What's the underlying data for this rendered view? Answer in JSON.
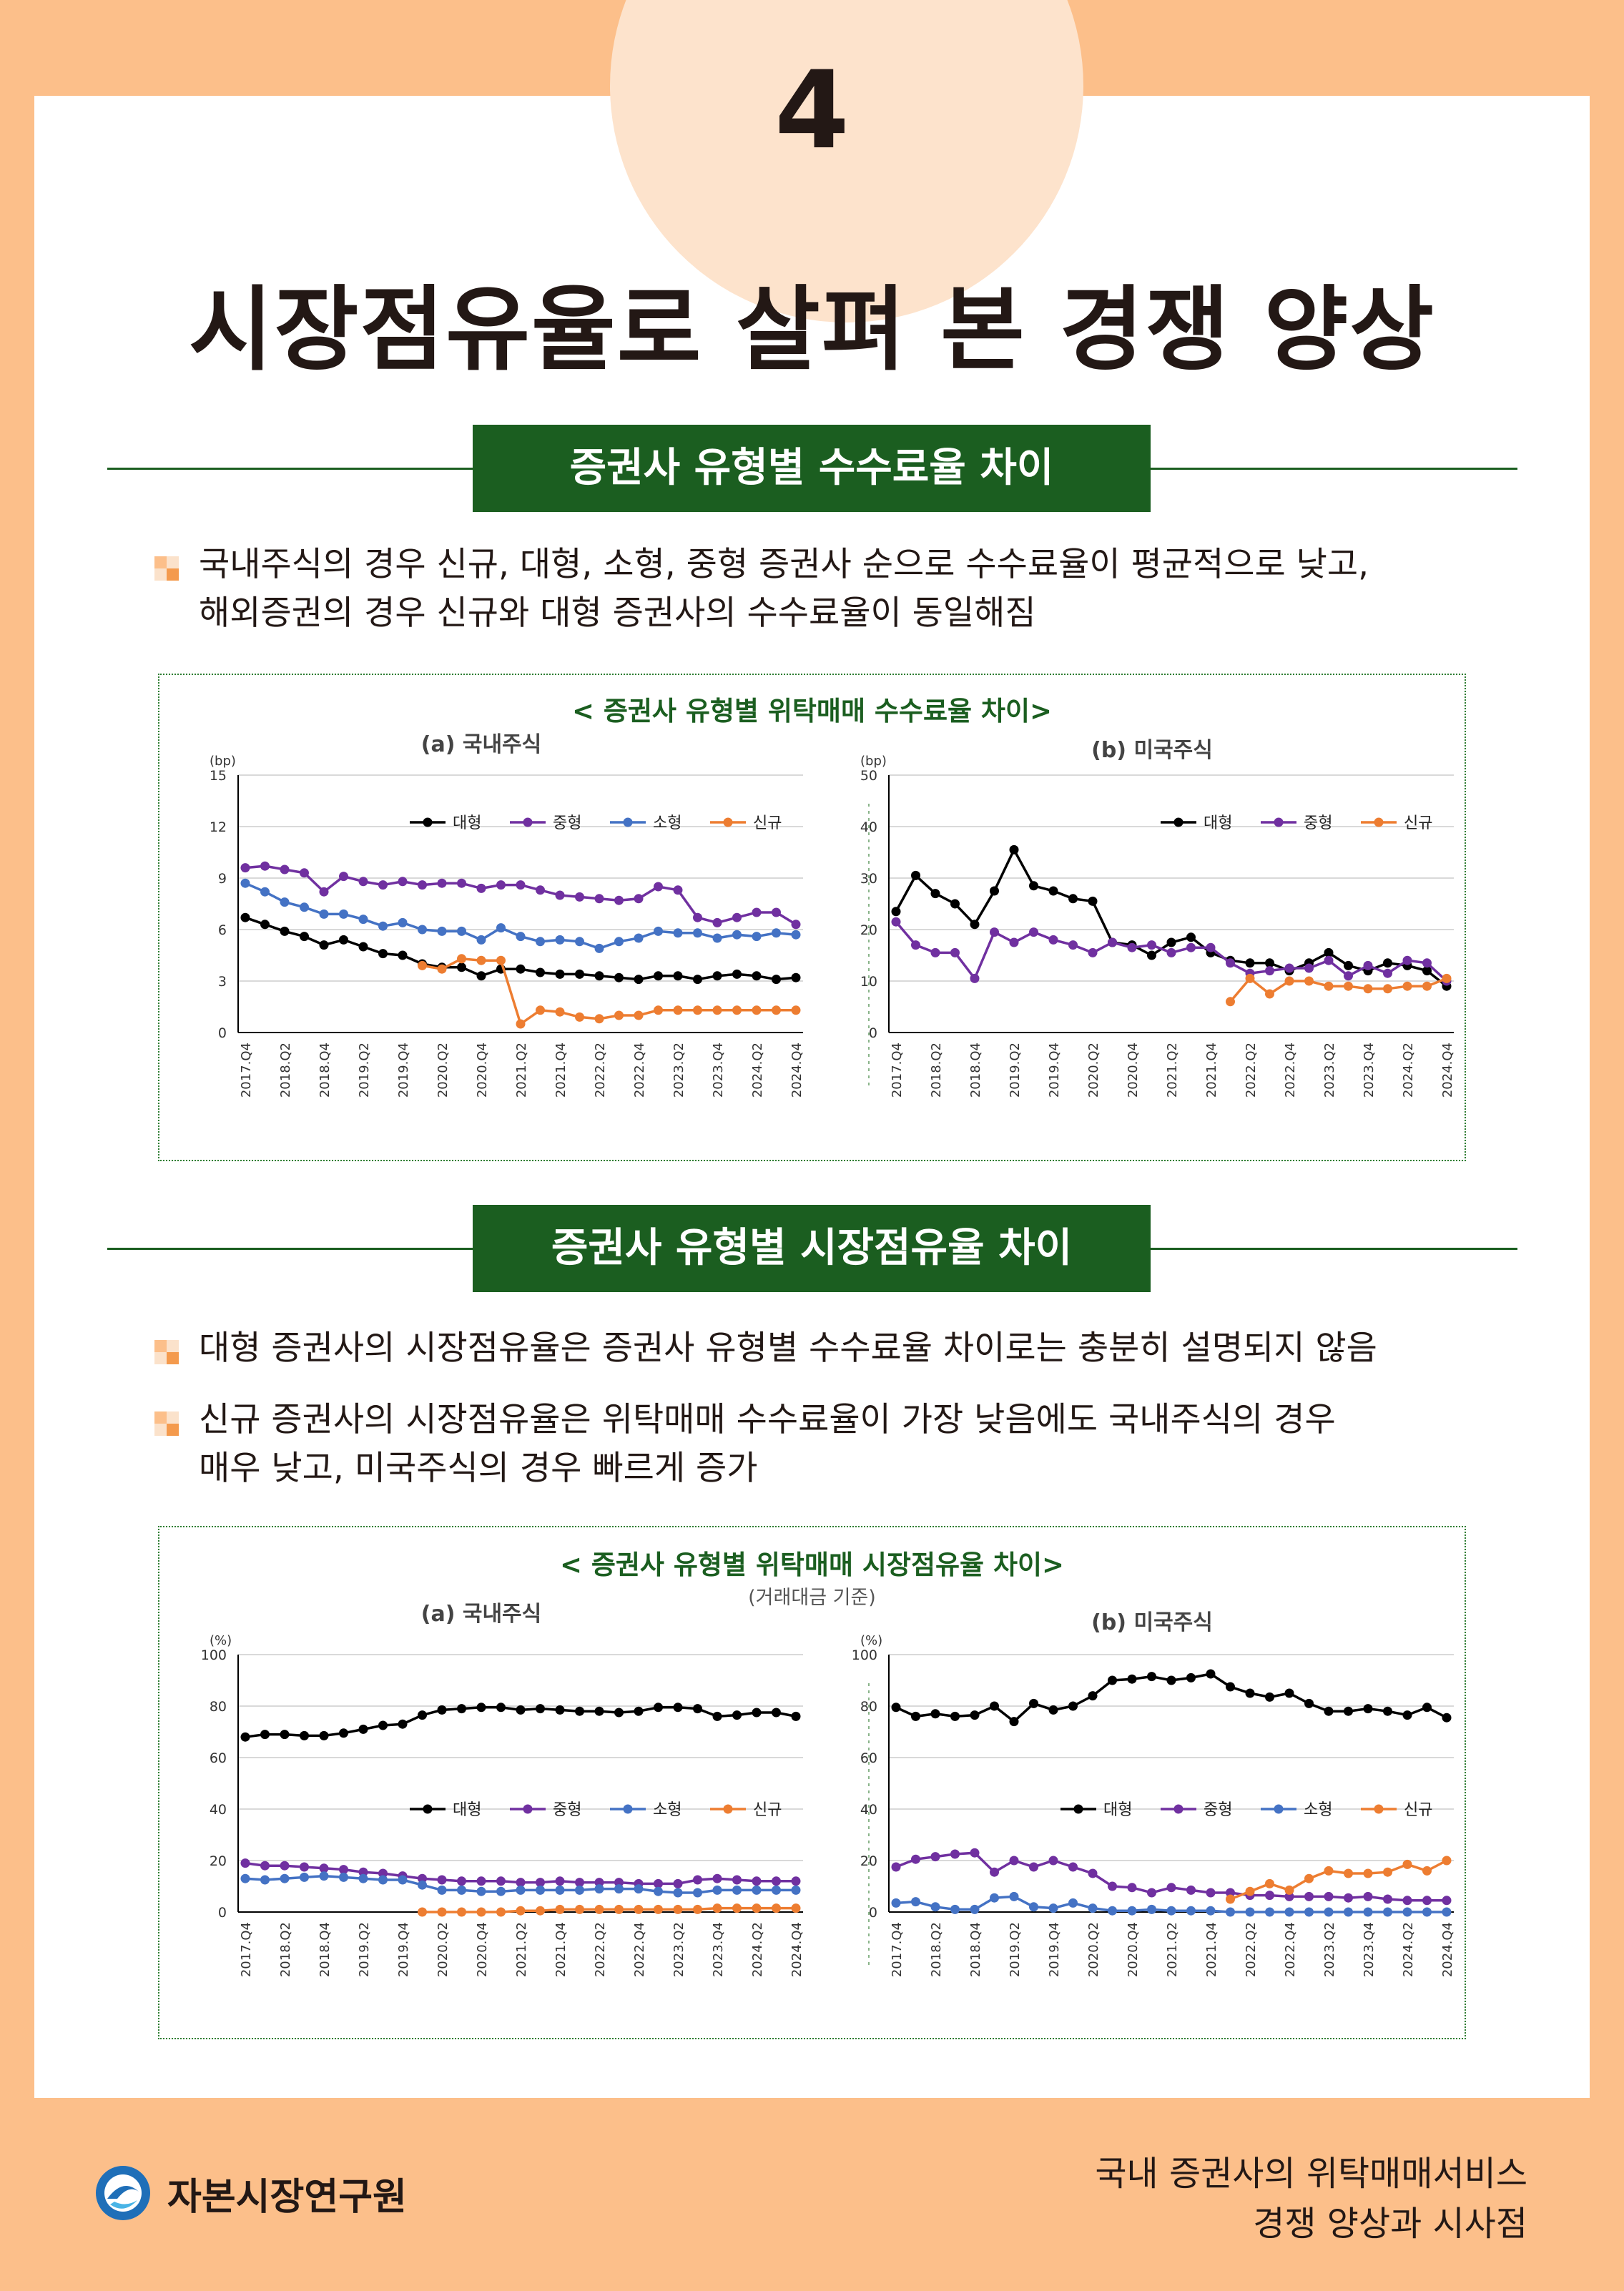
{
  "page": {
    "number": "4",
    "title": "시장점유율로 살펴 본 경쟁 양상"
  },
  "section1": {
    "heading": "증권사 유형별 수수료율 차이",
    "bullets": [
      "국내주식의 경우 신규, 대형, 소형, 중형 증권사 순으로 수수료율이 평균적으로 낮고,",
      "해외증권의 경우 신규와 대형 증권사의 수수료율이 동일해짐"
    ],
    "figure_title": "< 증권사 유형별 위탁매매 수수료율 차이>"
  },
  "section2": {
    "heading": "증권사 유형별 시장점유율 차이",
    "bullets": [
      "대형 증권사의 시장점유율은 증권사 유형별 수수료율 차이로는 충분히 설명되지 않음",
      "신규 증권사의 시장점유율은 위탁매매 수수료율이 가장 낮음에도 국내주식의 경우",
      "매우 낮고, 미국주식의 경우 빠르게 증가"
    ],
    "figure_title": "< 증권사 유형별 위탁매매 시장점유율 차이>",
    "figure_note": "(거래대금 기준)"
  },
  "footer": {
    "org": "자본시장연구원",
    "report_line1": "국내 증권사의 위탁매매서비스",
    "report_line2": "경쟁 양상과 시사점"
  },
  "colors": {
    "대형": "#000000",
    "중형": "#7030a0",
    "소형": "#4472c4",
    "신규": "#ed7d31"
  },
  "chart_data": [
    {
      "id": "fee_domestic",
      "type": "line",
      "title": "(a) 국내주식",
      "unit": "(bp)",
      "ylim": [
        0,
        15
      ],
      "yticks": [
        0,
        3,
        6,
        9,
        12,
        15
      ],
      "tick_labels": [
        "2017.Q4",
        "2018.Q2",
        "2018.Q4",
        "2019.Q2",
        "2019.Q4",
        "2020.Q2",
        "2020.Q4",
        "2021.Q2",
        "2021.Q4",
        "2022.Q2",
        "2022.Q4",
        "2023.Q2",
        "2023.Q4",
        "2024.Q2",
        "2024.Q4"
      ],
      "legend": [
        "대형",
        "중형",
        "소형",
        "신규"
      ],
      "series": [
        {
          "name": "대형",
          "values": [
            6.7,
            6.3,
            5.9,
            5.6,
            5.1,
            5.4,
            5.0,
            4.6,
            4.5,
            4.0,
            3.8,
            3.8,
            3.3,
            3.7,
            3.7,
            3.5,
            3.4,
            3.4,
            3.3,
            3.2,
            3.1,
            3.3,
            3.3,
            3.1,
            3.3,
            3.4,
            3.3,
            3.1,
            3.2
          ]
        },
        {
          "name": "중형",
          "values": [
            9.6,
            9.7,
            9.5,
            9.3,
            8.2,
            9.1,
            8.8,
            8.6,
            8.8,
            8.6,
            8.7,
            8.7,
            8.4,
            8.6,
            8.6,
            8.3,
            8.0,
            7.9,
            7.8,
            7.7,
            7.8,
            8.5,
            8.3,
            6.7,
            6.4,
            6.7,
            7.0,
            7.0,
            6.3
          ]
        },
        {
          "name": "소형",
          "values": [
            8.7,
            8.2,
            7.6,
            7.3,
            6.9,
            6.9,
            6.6,
            6.2,
            6.4,
            6.0,
            5.9,
            5.9,
            5.4,
            6.1,
            5.6,
            5.3,
            5.4,
            5.3,
            4.9,
            5.3,
            5.5,
            5.9,
            5.8,
            5.8,
            5.5,
            5.7,
            5.6,
            5.8,
            5.7
          ]
        },
        {
          "name": "신규",
          "values": [
            null,
            null,
            null,
            null,
            null,
            null,
            null,
            null,
            null,
            3.9,
            3.7,
            4.3,
            4.2,
            4.2,
            0.5,
            1.3,
            1.2,
            0.9,
            0.8,
            1.0,
            1.0,
            1.3,
            1.3,
            1.3,
            1.3,
            1.3,
            1.3,
            1.3,
            1.3
          ]
        }
      ]
    },
    {
      "id": "fee_us",
      "type": "line",
      "title": "(b) 미국주식",
      "unit": "(bp)",
      "ylim": [
        0,
        50
      ],
      "yticks": [
        0,
        10,
        20,
        30,
        40,
        50
      ],
      "tick_labels": [
        "2017.Q4",
        "2018.Q2",
        "2018.Q4",
        "2019.Q2",
        "2019.Q4",
        "2020.Q2",
        "2020.Q4",
        "2021.Q2",
        "2021.Q4",
        "2022.Q2",
        "2022.Q4",
        "2023.Q2",
        "2023.Q4",
        "2024.Q2",
        "2024.Q4"
      ],
      "legend": [
        "대형",
        "중형",
        "신규"
      ],
      "series": [
        {
          "name": "대형",
          "values": [
            23.5,
            30.5,
            27,
            25,
            21,
            27.5,
            35.5,
            28.5,
            27.5,
            26,
            25.5,
            17.5,
            17,
            15,
            17.5,
            18.5,
            15.5,
            14,
            13.5,
            13.5,
            12,
            13.5,
            15.5,
            13,
            12,
            13.5,
            13,
            12,
            9
          ]
        },
        {
          "name": "중형",
          "values": [
            21.5,
            17,
            15.5,
            15.5,
            10.5,
            19.5,
            17.5,
            19.5,
            18,
            17,
            15.5,
            17.5,
            16.5,
            17,
            15.5,
            16.5,
            16.5,
            13.5,
            11.5,
            12,
            12.5,
            12.5,
            14,
            11,
            13,
            11.5,
            14,
            13.5,
            10
          ]
        },
        {
          "name": "신규",
          "values": [
            null,
            null,
            null,
            null,
            null,
            null,
            null,
            null,
            null,
            null,
            null,
            null,
            null,
            null,
            null,
            null,
            null,
            6,
            10.5,
            7.5,
            10,
            10,
            9,
            9,
            8.5,
            8.5,
            9,
            9,
            10.5
          ]
        }
      ]
    },
    {
      "id": "share_domestic",
      "type": "line",
      "title": "(a) 국내주식",
      "unit": "(%)",
      "ylim": [
        0,
        100
      ],
      "yticks": [
        0,
        20,
        40,
        60,
        80,
        100
      ],
      "tick_labels": [
        "2017.Q4",
        "2018.Q2",
        "2018.Q4",
        "2019.Q2",
        "2019.Q4",
        "2020.Q2",
        "2020.Q4",
        "2021.Q2",
        "2021.Q4",
        "2022.Q2",
        "2022.Q4",
        "2023.Q2",
        "2023.Q4",
        "2024.Q2",
        "2024.Q4"
      ],
      "legend": [
        "대형",
        "중형",
        "소형",
        "신규"
      ],
      "series": [
        {
          "name": "대형",
          "values": [
            68,
            69,
            69,
            68.5,
            68.5,
            69.5,
            71,
            72.5,
            73,
            76.5,
            78.5,
            79,
            79.5,
            79.5,
            78.5,
            79,
            78.5,
            78,
            78,
            77.5,
            78,
            79.5,
            79.5,
            79,
            76,
            76.5,
            77.5,
            77.5,
            76
          ]
        },
        {
          "name": "중형",
          "values": [
            19,
            18,
            18,
            17.5,
            17,
            16.5,
            15.5,
            15,
            14,
            13,
            12.5,
            12,
            12,
            12,
            11.5,
            11.5,
            12,
            11.5,
            11.5,
            11.5,
            11,
            11,
            11,
            12.5,
            13,
            12.5,
            12,
            12,
            12
          ]
        },
        {
          "name": "소형",
          "values": [
            13,
            12.5,
            13,
            13.5,
            14,
            13.5,
            13,
            12.5,
            12.5,
            10.5,
            8.5,
            8.5,
            8,
            8,
            8.5,
            8.5,
            8.5,
            8.5,
            9,
            9,
            9,
            8,
            7.5,
            7.5,
            8.5,
            8.5,
            8.5,
            8.5,
            8.5
          ]
        },
        {
          "name": "신규",
          "values": [
            null,
            null,
            null,
            null,
            null,
            null,
            null,
            null,
            null,
            0,
            0,
            0,
            0,
            0,
            0.5,
            0.5,
            1,
            1,
            1,
            1,
            1,
            1,
            1,
            1,
            1.5,
            1.5,
            1.5,
            1.5,
            1.5
          ]
        }
      ]
    },
    {
      "id": "share_us",
      "type": "line",
      "title": "(b) 미국주식",
      "unit": "(%)",
      "ylim": [
        0,
        100
      ],
      "yticks": [
        0,
        20,
        40,
        60,
        80,
        100
      ],
      "tick_labels": [
        "2017.Q4",
        "2018.Q2",
        "2018.Q4",
        "2019.Q2",
        "2019.Q4",
        "2020.Q2",
        "2020.Q4",
        "2021.Q2",
        "2021.Q4",
        "2022.Q2",
        "2022.Q4",
        "2023.Q2",
        "2023.Q4",
        "2024.Q2",
        "2024.Q4"
      ],
      "legend": [
        "대형",
        "중형",
        "소형",
        "신규"
      ],
      "series": [
        {
          "name": "대형",
          "values": [
            79.5,
            76,
            77,
            76,
            76.5,
            80,
            74,
            81,
            78.5,
            80,
            84,
            90,
            90.5,
            91.5,
            90,
            91,
            92.5,
            87.5,
            85,
            83.5,
            85,
            81,
            78,
            78,
            79,
            78,
            76.5,
            79.5,
            75.5
          ]
        },
        {
          "name": "중형",
          "values": [
            17.5,
            20.5,
            21.5,
            22.5,
            23,
            15.5,
            20,
            17.5,
            20,
            17.5,
            15,
            10,
            9.5,
            7.5,
            9.5,
            8.5,
            7.5,
            7.5,
            6.5,
            6.5,
            6,
            6,
            6,
            5.5,
            6,
            5,
            4.5,
            4.5,
            4.5
          ]
        },
        {
          "name": "소형",
          "values": [
            3.5,
            4,
            2,
            1,
            1,
            5.5,
            6,
            2,
            1.5,
            3.5,
            1.5,
            0.5,
            0.5,
            1,
            0.5,
            0.5,
            0.5,
            0,
            0,
            0,
            0,
            0,
            0,
            0,
            0,
            0,
            0,
            0,
            0
          ]
        },
        {
          "name": "신규",
          "values": [
            null,
            null,
            null,
            null,
            null,
            null,
            null,
            null,
            null,
            null,
            null,
            null,
            null,
            null,
            null,
            null,
            null,
            5,
            8,
            11,
            8.5,
            13,
            16,
            15,
            15,
            15.5,
            18.5,
            16,
            20
          ]
        }
      ]
    }
  ]
}
